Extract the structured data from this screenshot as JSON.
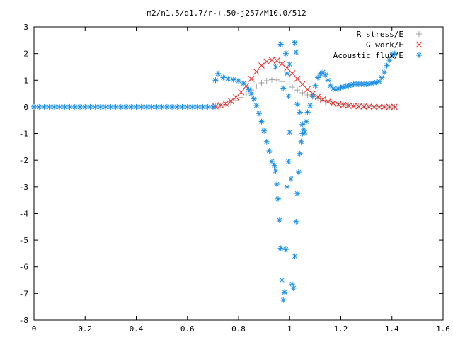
{
  "chart_data": {
    "type": "scatter",
    "title": "m2/n1.5/q1.7/r-+.50-j257/M10.0/512",
    "xlim": [
      0,
      1.6
    ],
    "ylim": [
      -8,
      3
    ],
    "xticks": [
      "0",
      "0.2",
      "0.4",
      "0.6",
      "0.8",
      "1",
      "1.2",
      "1.4",
      "1.6"
    ],
    "yticks": [
      "3",
      "2",
      "1",
      "0",
      "-1",
      "-2",
      "-3",
      "-4",
      "-5",
      "-6",
      "-7",
      "-8"
    ],
    "legend_position": "top-right",
    "grid": false,
    "series": [
      {
        "name": "R stress/E",
        "marker": "plus",
        "color": "#a0a0a0",
        "x": [
          0.71,
          0.73,
          0.75,
          0.77,
          0.79,
          0.81,
          0.83,
          0.85,
          0.87,
          0.89,
          0.91,
          0.93,
          0.95,
          0.97,
          0.99,
          1.01,
          1.03,
          1.05,
          1.07,
          1.09,
          1.11,
          1.13,
          1.15,
          1.17,
          1.19,
          1.21,
          1.23,
          1.25,
          1.27,
          1.29,
          1.31,
          1.33,
          1.35,
          1.37,
          1.39,
          1.41
        ],
        "y": [
          0.02,
          0.05,
          0.09,
          0.15,
          0.24,
          0.35,
          0.48,
          0.63,
          0.78,
          0.9,
          0.98,
          1.02,
          1.01,
          0.95,
          0.86,
          0.74,
          0.63,
          0.53,
          0.45,
          0.38,
          0.31,
          0.25,
          0.2,
          0.15,
          0.12,
          0.09,
          0.07,
          0.05,
          0.04,
          0.03,
          0.02,
          0.01,
          0.01,
          0.0,
          0.0,
          0.0
        ]
      },
      {
        "name": "G work/E",
        "marker": "cross",
        "color": "#e8211e",
        "x": [
          0.71,
          0.73,
          0.75,
          0.77,
          0.79,
          0.81,
          0.83,
          0.85,
          0.87,
          0.89,
          0.91,
          0.93,
          0.95,
          0.97,
          0.99,
          1.01,
          1.03,
          1.05,
          1.07,
          1.09,
          1.11,
          1.13,
          1.15,
          1.17,
          1.19,
          1.21,
          1.23,
          1.25,
          1.27,
          1.29,
          1.31,
          1.33,
          1.35,
          1.37,
          1.39,
          1.41
        ],
        "y": [
          0.02,
          0.06,
          0.12,
          0.22,
          0.36,
          0.55,
          0.78,
          1.05,
          1.32,
          1.55,
          1.7,
          1.76,
          1.74,
          1.62,
          1.45,
          1.26,
          1.05,
          0.85,
          0.66,
          0.5,
          0.38,
          0.28,
          0.2,
          0.14,
          0.1,
          0.07,
          0.05,
          0.03,
          0.02,
          0.01,
          0.01,
          0.0,
          0.0,
          0.0,
          0.0,
          0.0
        ]
      },
      {
        "name": "Acoustic flux/E",
        "marker": "star",
        "color": "#1c8fea",
        "x": [
          0.0,
          0.02,
          0.04,
          0.06,
          0.08,
          0.1,
          0.12,
          0.14,
          0.16,
          0.18,
          0.2,
          0.22,
          0.24,
          0.26,
          0.28,
          0.3,
          0.32,
          0.34,
          0.36,
          0.38,
          0.4,
          0.42,
          0.44,
          0.46,
          0.48,
          0.5,
          0.52,
          0.54,
          0.56,
          0.58,
          0.6,
          0.62,
          0.64,
          0.66,
          0.68,
          0.7,
          0.71,
          0.72,
          0.74,
          0.76,
          0.78,
          0.8,
          0.82,
          0.84,
          0.85,
          0.86,
          0.87,
          0.88,
          0.89,
          0.9,
          0.91,
          0.92,
          0.93,
          0.94,
          0.945,
          0.95,
          0.955,
          0.96,
          0.965,
          0.97,
          0.975,
          0.98,
          0.985,
          0.99,
          0.995,
          1.0,
          1.005,
          1.01,
          1.015,
          1.02,
          1.025,
          1.03,
          1.035,
          1.04,
          1.045,
          1.05,
          1.055,
          1.06,
          1.065,
          1.07,
          1.08,
          1.09,
          1.1,
          1.11,
          1.12,
          1.13,
          1.14,
          1.15,
          1.16,
          1.17,
          1.18,
          1.19,
          1.2,
          1.21,
          1.22,
          1.23,
          1.24,
          1.25,
          1.26,
          1.27,
          1.28,
          1.29,
          1.3,
          1.31,
          1.32,
          1.33,
          1.34,
          1.35,
          1.36,
          1.37,
          1.38,
          1.39,
          1.4,
          1.41
        ],
        "y": [
          0,
          0,
          0,
          0,
          0,
          0,
          0,
          0,
          0,
          0,
          0,
          0,
          0,
          0,
          0,
          0,
          0,
          0,
          0,
          0,
          0,
          0,
          0,
          0,
          0,
          0,
          0,
          0,
          0,
          0,
          0,
          0,
          0,
          0,
          0,
          0,
          1.0,
          1.25,
          1.1,
          1.05,
          1.02,
          0.98,
          0.88,
          0.65,
          0.5,
          0.3,
          0.05,
          -0.25,
          -0.55,
          -0.9,
          -1.3,
          -1.65,
          -2.05,
          -2.2,
          -2.4,
          -2.9,
          -3.45,
          -4.25,
          -5.3,
          -6.5,
          -7.25,
          -6.95,
          -5.35,
          -3.0,
          -2.05,
          -0.95,
          -2.7,
          -6.65,
          -6.8,
          -5.6,
          -4.3,
          -3.25,
          -2.45,
          -1.75,
          -1.3,
          -1.0,
          -0.85,
          -0.95,
          -0.55,
          -0.2,
          0.05,
          0.4,
          0.8,
          1.1,
          1.25,
          1.3,
          1.2,
          1.0,
          0.8,
          0.68,
          0.65,
          0.68,
          0.72,
          0.75,
          0.78,
          0.8,
          0.82,
          0.85,
          0.85,
          0.85,
          0.85,
          0.85,
          0.85,
          0.85,
          0.88,
          0.9,
          0.92,
          0.95,
          1.1,
          1.3,
          1.55,
          1.75,
          1.95,
          2.0
        ]
      },
      {
        "name": "",
        "marker": "star",
        "color": "#1c8fea",
        "x": [
          0.945,
          0.965,
          0.975,
          0.985,
          0.99,
          0.995,
          1.0,
          1.02,
          1.025,
          1.03,
          1.04,
          1.05
        ],
        "y": [
          1.5,
          2.35,
          0.7,
          2.0,
          1.25,
          0.4,
          1.6,
          2.4,
          2.05,
          0.1,
          -0.2,
          -0.65
        ]
      }
    ]
  }
}
